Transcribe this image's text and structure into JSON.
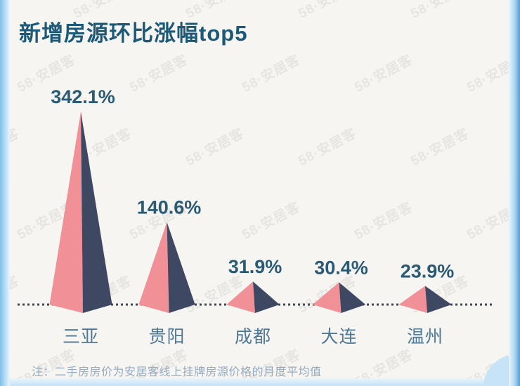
{
  "page": {
    "title": "新增房源环比涨幅top5",
    "note": "注：二手房房价为安居客线上挂牌房源价格的月度平均值"
  },
  "watermark": {
    "text": "58·安居客"
  },
  "chart_data": {
    "type": "bar",
    "variant": "split-pyramid",
    "title": "新增房源环比涨幅top5",
    "categories": [
      "三亚",
      "贵阳",
      "成都",
      "大连",
      "温州"
    ],
    "values": [
      342.1,
      140.6,
      31.9,
      30.4,
      23.9
    ],
    "value_labels": [
      "342.1%",
      "140.6%",
      "31.9%",
      "30.4%",
      "23.9%"
    ],
    "unit": "%",
    "ylim": [
      0,
      360
    ],
    "baseline_style": "dotted",
    "legend": "none",
    "grid": "off",
    "colors": {
      "left_face": "#f29097",
      "right_face": "#3f4862",
      "value_label": "#2a5a74",
      "category_label": "#4e7896",
      "baseline": "#40484e"
    }
  },
  "style": {
    "background": "#f6f5f2",
    "title_color": "#1c5877",
    "note_color": "#95abc0",
    "edge_blue": "#7fbdea",
    "edge_blue_light": "#d7ecfa",
    "corner_blue": "#c6e3f8",
    "watermark_color": "#e6e5e1"
  }
}
